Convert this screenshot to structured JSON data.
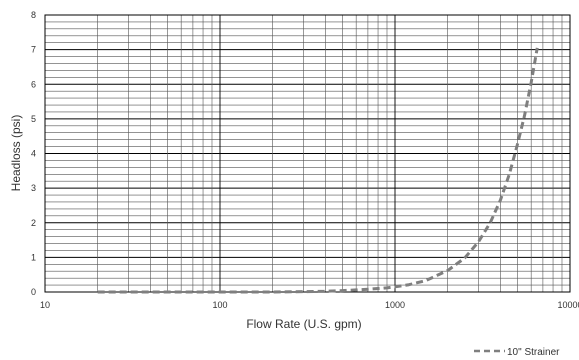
{
  "chart_data": {
    "type": "line",
    "x_scale": "log",
    "xlabel": "Flow Rate (U.S. gpm)",
    "ylabel": "Headloss (psi)",
    "xlim": [
      10,
      10000
    ],
    "ylim": [
      0,
      8
    ],
    "x_ticks": [
      "10",
      "100",
      "1000",
      "10000"
    ],
    "y_ticks": [
      "0",
      "1",
      "2",
      "3",
      "4",
      "5",
      "6",
      "7",
      "8"
    ],
    "grid": true,
    "legend_position": "bottom-right",
    "series": [
      {
        "name": "10\" Strainer",
        "style": "dashed",
        "color": "#7f7f7f",
        "x": [
          20,
          50,
          100,
          200,
          300,
          400,
          500,
          600,
          700,
          800,
          900,
          1000,
          1200,
          1500,
          2000,
          2500,
          3000,
          3500,
          4000,
          4500,
          5000,
          5500,
          6000,
          6500
        ],
        "y": [
          0.0,
          0.0,
          0.0,
          0.0,
          0.01,
          0.02,
          0.04,
          0.06,
          0.08,
          0.1,
          0.12,
          0.15,
          0.21,
          0.33,
          0.62,
          0.98,
          1.45,
          2.0,
          2.65,
          3.4,
          4.25,
          5.1,
          6.05,
          7.05
        ]
      }
    ]
  }
}
